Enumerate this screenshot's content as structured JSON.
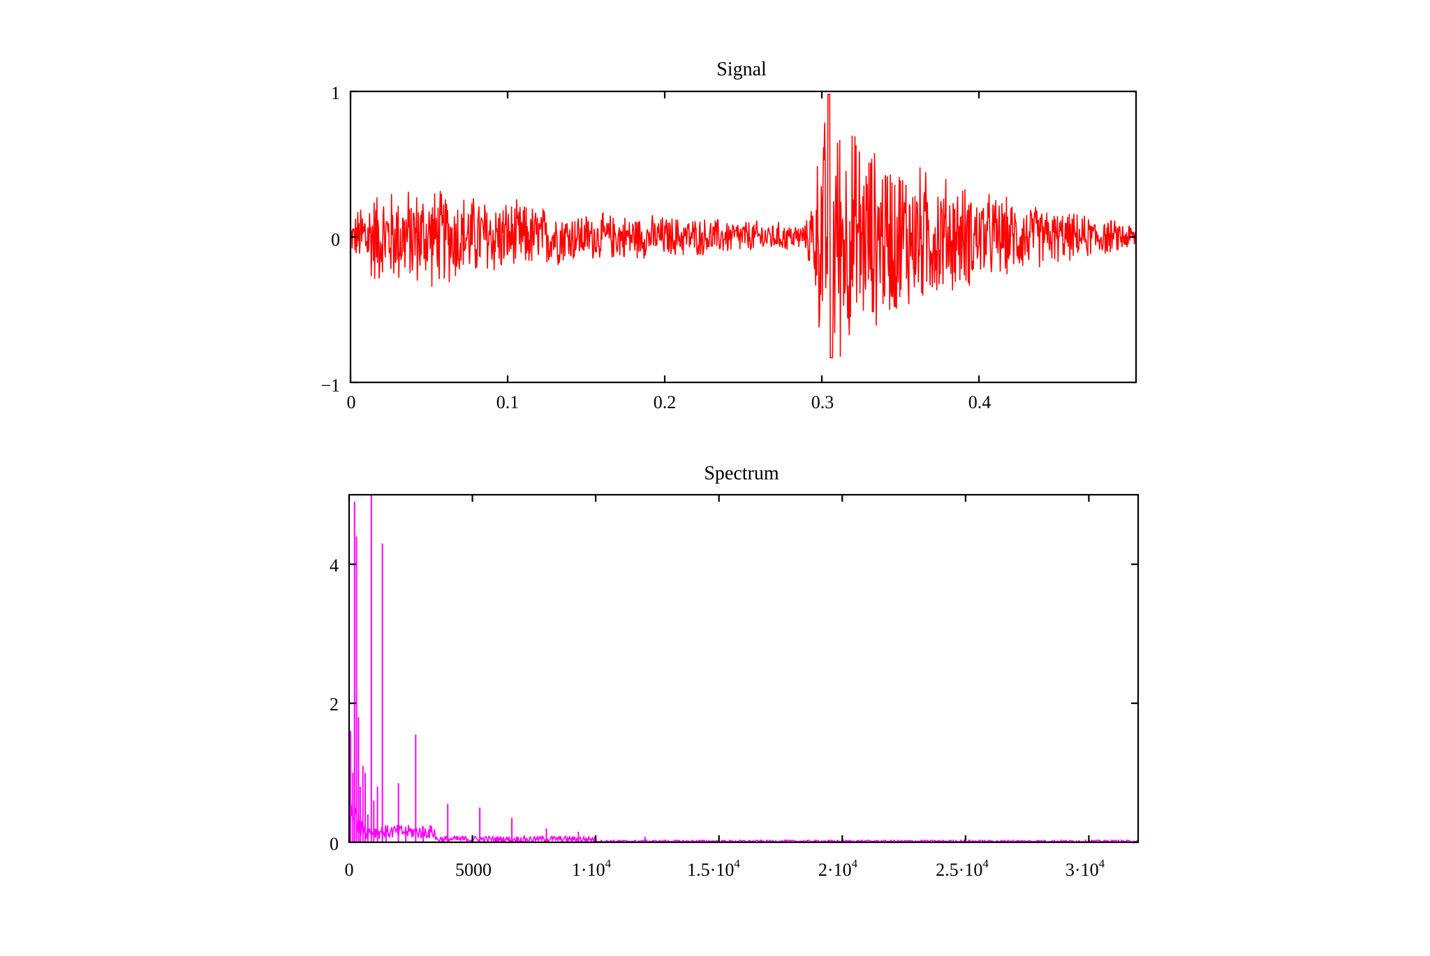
{
  "chart_data": [
    {
      "type": "line",
      "title": "Signal",
      "xlabel": "",
      "ylabel": "",
      "xlim": [
        0,
        0.5
      ],
      "ylim": [
        -1,
        1
      ],
      "x_ticks": [
        "0",
        "0.1",
        "0.2",
        "0.3",
        "0.4"
      ],
      "y_ticks": [
        "-1",
        "0",
        "1"
      ],
      "color": "#ff0000",
      "grid": false,
      "series": [
        {
          "description_points": [
            {
              "x": 0.0,
              "envelope": 0.1
            },
            {
              "x": 0.01,
              "envelope": 0.35
            },
            {
              "x": 0.05,
              "envelope": 0.38
            },
            {
              "x": 0.1,
              "envelope": 0.28
            },
            {
              "x": 0.15,
              "envelope": 0.18
            },
            {
              "x": 0.2,
              "envelope": 0.16
            },
            {
              "x": 0.25,
              "envelope": 0.13
            },
            {
              "x": 0.29,
              "envelope": 0.1
            },
            {
              "x": 0.3,
              "envelope": 0.85
            },
            {
              "x": 0.305,
              "envelope": 1.0
            },
            {
              "x": 0.33,
              "envelope": 0.7
            },
            {
              "x": 0.36,
              "envelope": 0.55
            },
            {
              "x": 0.4,
              "envelope": 0.35
            },
            {
              "x": 0.45,
              "envelope": 0.2
            },
            {
              "x": 0.5,
              "envelope": 0.1
            }
          ]
        }
      ]
    },
    {
      "type": "line",
      "title": "Spectrum",
      "xlabel": "",
      "ylabel": "",
      "xlim": [
        0,
        32000
      ],
      "ylim": [
        0,
        5
      ],
      "x_ticks": [
        {
          "base": "0"
        },
        {
          "base": "5000"
        },
        {
          "base": "1·10",
          "exp": "4"
        },
        {
          "base": "1.5·10",
          "exp": "4"
        },
        {
          "base": "2·10",
          "exp": "4"
        },
        {
          "base": "2.5·10",
          "exp": "4"
        },
        {
          "base": "3·10",
          "exp": "4"
        }
      ],
      "y_ticks": [
        "0",
        "2",
        "4"
      ],
      "color": "#ff00ff",
      "grid": false,
      "peaks": [
        {
          "x": 60,
          "y": 1.6
        },
        {
          "x": 150,
          "y": 1.0
        },
        {
          "x": 220,
          "y": 4.9
        },
        {
          "x": 300,
          "y": 4.4
        },
        {
          "x": 380,
          "y": 1.8
        },
        {
          "x": 450,
          "y": 0.8
        },
        {
          "x": 560,
          "y": 1.1
        },
        {
          "x": 650,
          "y": 1.0
        },
        {
          "x": 760,
          "y": 0.4
        },
        {
          "x": 900,
          "y": 5.0
        },
        {
          "x": 1000,
          "y": 0.6
        },
        {
          "x": 1150,
          "y": 0.8
        },
        {
          "x": 1350,
          "y": 4.3
        },
        {
          "x": 1500,
          "y": 0.2
        },
        {
          "x": 2000,
          "y": 0.85
        },
        {
          "x": 2300,
          "y": 0.15
        },
        {
          "x": 2700,
          "y": 1.55
        },
        {
          "x": 3000,
          "y": 0.15
        },
        {
          "x": 4000,
          "y": 0.55
        },
        {
          "x": 5300,
          "y": 0.5
        },
        {
          "x": 6600,
          "y": 0.35
        },
        {
          "x": 8000,
          "y": 0.2
        },
        {
          "x": 9300,
          "y": 0.15
        },
        {
          "x": 12000,
          "y": 0.08
        },
        {
          "x": 13400,
          "y": 0.03
        }
      ]
    }
  ]
}
